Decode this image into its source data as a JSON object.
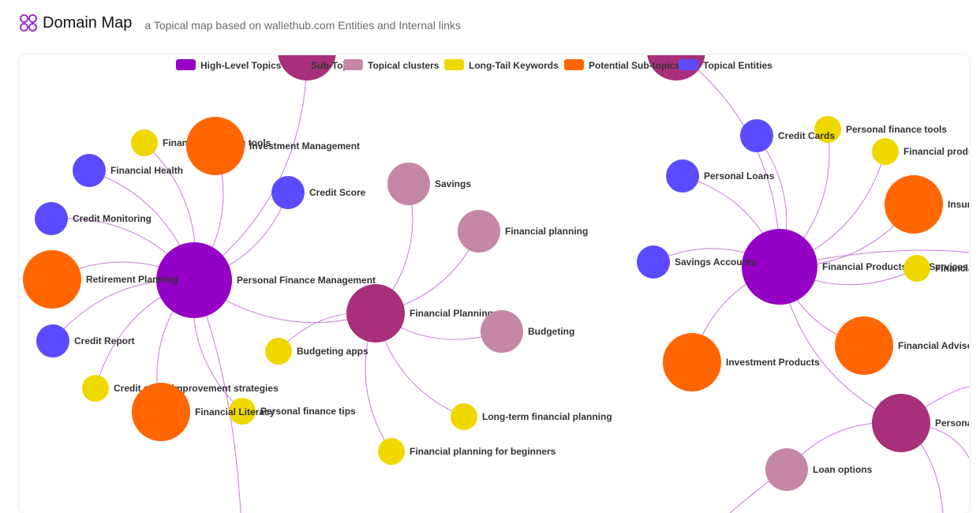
{
  "header": {
    "title": "Domain Map",
    "subtitle": "a Topical map based on wallethub.com Entities and Internal links",
    "logo_icon": "four-circles-icon",
    "logo_color": "#9b30c9"
  },
  "legend": [
    {
      "label": "High-Level Topics",
      "color": "#9400C4"
    },
    {
      "label": "Sub-Topics",
      "color": "#A8307A"
    },
    {
      "label": "Topical clusters",
      "color": "#C587A6"
    },
    {
      "label": "Long-Tail Keywords",
      "color": "#EED800"
    },
    {
      "label": "Potential Sub-topics",
      "color": "#FF6600"
    },
    {
      "label": "Topical Entities",
      "color": "#5B4BFF"
    }
  ],
  "nodes": [
    {
      "id": "n1",
      "label": "Personal Finance Management",
      "type": 0
    },
    {
      "id": "n2",
      "label": "Financial Products and Services",
      "type": 0
    },
    {
      "id": "n3",
      "label": "Financial Planning",
      "type": 1
    },
    {
      "id": "n4",
      "label": "Personal",
      "type": 1
    },
    {
      "id": "n5",
      "label": "",
      "type": 1
    },
    {
      "id": "n6",
      "label": "",
      "type": 1
    },
    {
      "id": "n7",
      "label": "Savings",
      "type": 2
    },
    {
      "id": "n8",
      "label": "Financial planning",
      "type": 2
    },
    {
      "id": "n9",
      "label": "Budgeting",
      "type": 2
    },
    {
      "id": "n10",
      "label": "Loan options",
      "type": 2
    },
    {
      "id": "n11",
      "label": "Financial planning tools",
      "type": 3
    },
    {
      "id": "n12",
      "label": "Budgeting apps",
      "type": 3
    },
    {
      "id": "n13",
      "label": "Credit score improvement strategies",
      "type": 3
    },
    {
      "id": "n14",
      "label": "Personal finance tips",
      "type": 3
    },
    {
      "id": "n15",
      "label": "Long-term financial planning",
      "type": 3
    },
    {
      "id": "n16",
      "label": "Financial planning for beginners",
      "type": 3
    },
    {
      "id": "n17",
      "label": "Personal finance tools",
      "type": 3
    },
    {
      "id": "n18",
      "label": "Financial produ",
      "type": 3
    },
    {
      "id": "n19",
      "label": "Financia",
      "type": 3
    },
    {
      "id": "n20",
      "label": "Investment Management",
      "type": 4
    },
    {
      "id": "n21",
      "label": "Retirement Planning",
      "type": 4
    },
    {
      "id": "n22",
      "label": "Financial Literacy",
      "type": 4
    },
    {
      "id": "n23",
      "label": "Insura",
      "type": 4
    },
    {
      "id": "n24",
      "label": "Financial Advisor",
      "type": 4
    },
    {
      "id": "n25",
      "label": "Investment Products",
      "type": 4
    },
    {
      "id": "n26",
      "label": "Financial Health",
      "type": 5
    },
    {
      "id": "n27",
      "label": "Credit Score",
      "type": 5
    },
    {
      "id": "n28",
      "label": "Credit Monitoring",
      "type": 5
    },
    {
      "id": "n29",
      "label": "Credit Report",
      "type": 5
    },
    {
      "id": "n30",
      "label": "Credit Cards",
      "type": 5
    },
    {
      "id": "n31",
      "label": "Personal Loans",
      "type": 5
    },
    {
      "id": "n32",
      "label": "Savings Accounts",
      "type": 5
    }
  ],
  "links": [
    [
      "n1",
      "n20"
    ],
    [
      "n1",
      "n11"
    ],
    [
      "n1",
      "n26"
    ],
    [
      "n1",
      "n27"
    ],
    [
      "n1",
      "n28"
    ],
    [
      "n1",
      "n21"
    ],
    [
      "n1",
      "n29"
    ],
    [
      "n1",
      "n13"
    ],
    [
      "n1",
      "n22"
    ],
    [
      "n1",
      "n14"
    ],
    [
      "n1",
      "n3"
    ],
    [
      "n1",
      "n5"
    ],
    [
      "n3",
      "n7"
    ],
    [
      "n3",
      "n8"
    ],
    [
      "n3",
      "n9"
    ],
    [
      "n3",
      "n12"
    ],
    [
      "n3",
      "n15"
    ],
    [
      "n3",
      "n16"
    ],
    [
      "n2",
      "n30"
    ],
    [
      "n2",
      "n31"
    ],
    [
      "n2",
      "n17"
    ],
    [
      "n2",
      "n18"
    ],
    [
      "n2",
      "n23"
    ],
    [
      "n2",
      "n19"
    ],
    [
      "n2",
      "n32"
    ],
    [
      "n2",
      "n24"
    ],
    [
      "n2",
      "n25"
    ],
    [
      "n2",
      "n4"
    ],
    [
      "n2",
      "n6"
    ],
    [
      "n4",
      "n10"
    ]
  ]
}
